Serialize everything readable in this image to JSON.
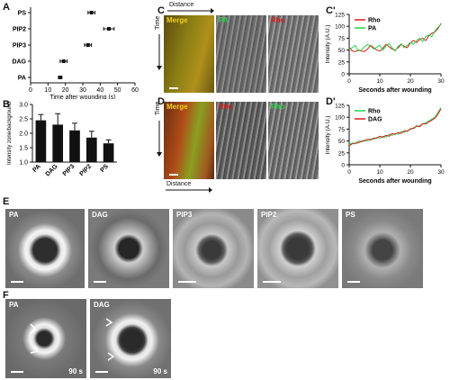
{
  "figure": {
    "panels": {
      "A": "A",
      "B": "B",
      "C": "C",
      "C2": "C'",
      "D": "D",
      "D2": "D'",
      "E": "E",
      "F": "F"
    },
    "colors": {
      "green": "#27d34a",
      "red": "#d81b1b",
      "merge_yellow": "#d8c020"
    },
    "kymographs": {
      "distance_label": "Distance",
      "time_label": "Time",
      "C": [
        "Merge",
        "PA",
        "Rho"
      ],
      "D": [
        "Merge",
        "Rho",
        "Rho"
      ]
    },
    "micrographs": {
      "E": [
        "PA",
        "DAG",
        "PIP3",
        "PIP2",
        "PS"
      ],
      "F": [
        {
          "label": "PA",
          "time": "90 s"
        },
        {
          "label": "DAG",
          "time": "90 s"
        }
      ]
    }
  },
  "chart_data": [
    {
      "id": "A",
      "type": "scatter",
      "title": "",
      "xlabel": "Time after wounding (s)",
      "ylabel": "",
      "categories": [
        "PS",
        "PIP2",
        "PIP3",
        "DAG",
        "PA"
      ],
      "values": [
        35,
        45,
        33,
        19,
        17
      ],
      "errors": [
        2,
        3,
        2,
        2,
        1
      ],
      "xlim": [
        0,
        60
      ],
      "xticks": [
        "0",
        "10",
        "20",
        "30",
        "40",
        "50",
        "60"
      ]
    },
    {
      "id": "B",
      "type": "bar",
      "title": "",
      "xlabel": "",
      "ylabel": "Intensity zone/background",
      "categories": [
        "PA",
        "DAG",
        "PIP3",
        "PIP2",
        "PS"
      ],
      "values": [
        2.45,
        2.3,
        2.1,
        1.85,
        1.65
      ],
      "errors": [
        0.2,
        0.38,
        0.25,
        0.22,
        0.12
      ],
      "ylim": [
        1.0,
        3.0
      ],
      "yticks": [
        "1.0",
        "1.5",
        "2.0",
        "2.5",
        "3.0"
      ]
    },
    {
      "id": "C'",
      "type": "line",
      "xlabel": "Seconds after wounding",
      "ylabel": "Intensity (A.U.)",
      "xlim": [
        0,
        30
      ],
      "ylim": [
        0,
        125
      ],
      "xticks": [
        "0",
        "10",
        "20",
        "30"
      ],
      "yticks": [
        "0",
        "25",
        "50",
        "75",
        "100",
        "125"
      ],
      "legend": "top-left",
      "series": [
        {
          "name": "Rho",
          "color": "#d81b1b",
          "x": [
            0,
            1,
            2,
            3,
            4,
            5,
            6,
            7,
            8,
            9,
            10,
            11,
            12,
            13,
            14,
            15,
            16,
            17,
            18,
            19,
            20,
            21,
            22,
            23,
            24,
            25,
            26,
            27,
            28,
            29,
            30
          ],
          "y": [
            56,
            48,
            47,
            50,
            48,
            47,
            52,
            60,
            55,
            50,
            48,
            54,
            62,
            57,
            52,
            50,
            55,
            62,
            58,
            55,
            65,
            70,
            66,
            72,
            75,
            70,
            80,
            85,
            88,
            95,
            106
          ]
        },
        {
          "name": "PA",
          "color": "#27d34a",
          "x": [
            0,
            1,
            2,
            3,
            4,
            5,
            6,
            7,
            8,
            9,
            10,
            11,
            12,
            13,
            14,
            15,
            16,
            17,
            18,
            19,
            20,
            21,
            22,
            23,
            24,
            25,
            26,
            27,
            28,
            29,
            30
          ],
          "y": [
            52,
            55,
            60,
            48,
            50,
            57,
            62,
            58,
            52,
            56,
            60,
            50,
            58,
            64,
            55,
            48,
            58,
            63,
            55,
            60,
            66,
            62,
            70,
            75,
            68,
            78,
            82,
            78,
            90,
            98,
            104
          ]
        }
      ]
    },
    {
      "id": "D'",
      "type": "line",
      "xlabel": "Seconds after wounding",
      "ylabel": "Intensity (A.U.)",
      "xlim": [
        0,
        30
      ],
      "ylim": [
        0,
        125
      ],
      "xticks": [
        "0",
        "10",
        "20",
        "30"
      ],
      "yticks": [
        "0",
        "25",
        "50",
        "75",
        "100",
        "125"
      ],
      "legend": "top-left",
      "series": [
        {
          "name": "Rho",
          "color": "#27d34a",
          "x": [
            0,
            1,
            2,
            3,
            4,
            5,
            6,
            7,
            8,
            9,
            10,
            11,
            12,
            13,
            14,
            15,
            16,
            17,
            18,
            19,
            20,
            21,
            22,
            23,
            24,
            25,
            26,
            27,
            28,
            29,
            30
          ],
          "y": [
            42,
            46,
            44,
            50,
            48,
            52,
            50,
            55,
            53,
            58,
            56,
            60,
            58,
            64,
            62,
            66,
            64,
            70,
            68,
            72,
            74,
            78,
            80,
            82,
            86,
            88,
            92,
            96,
            100,
            110,
            120
          ]
        },
        {
          "name": "DAG",
          "color": "#d81b1b",
          "x": [
            0,
            1,
            2,
            3,
            4,
            5,
            6,
            7,
            8,
            9,
            10,
            11,
            12,
            13,
            14,
            15,
            16,
            17,
            18,
            19,
            20,
            21,
            22,
            23,
            24,
            25,
            26,
            27,
            28,
            29,
            30
          ],
          "y": [
            40,
            44,
            46,
            46,
            50,
            50,
            54,
            52,
            56,
            56,
            60,
            58,
            62,
            60,
            66,
            64,
            68,
            66,
            72,
            70,
            76,
            76,
            82,
            80,
            86,
            86,
            90,
            94,
            98,
            106,
            118
          ]
        }
      ]
    }
  ]
}
